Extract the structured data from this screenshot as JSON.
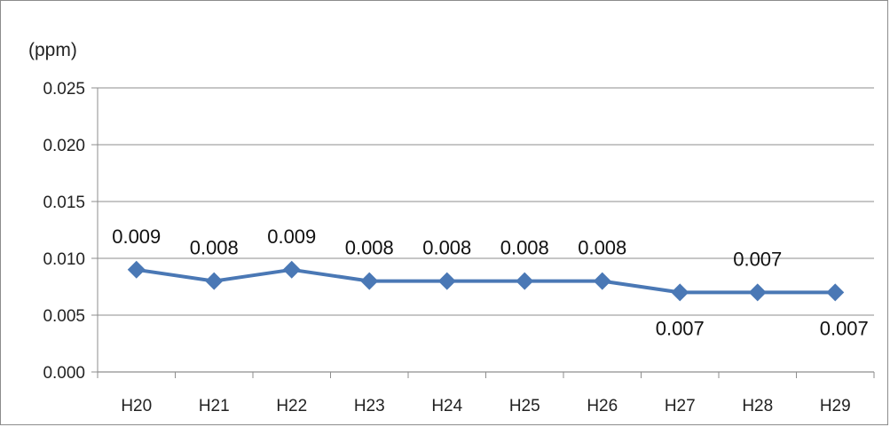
{
  "chart_data": {
    "type": "line",
    "title": "",
    "xlabel": "",
    "ylabel": "(ppm)",
    "categories": [
      "H20",
      "H21",
      "H22",
      "H23",
      "H24",
      "H25",
      "H26",
      "H27",
      "H28",
      "H29"
    ],
    "series": [
      {
        "values": [
          0.009,
          0.008,
          0.009,
          0.008,
          0.008,
          0.008,
          0.008,
          0.007,
          0.007,
          0.007
        ],
        "labels": [
          "0.009",
          "0.008",
          "0.009",
          "0.008",
          "0.008",
          "0.008",
          "0.008",
          "0.007",
          "0.007",
          "0.007"
        ],
        "color": "#4a78b5"
      }
    ],
    "ylim": [
      0,
      0.025
    ],
    "yticks": [
      0,
      0.005,
      0.01,
      0.015,
      0.02,
      0.025
    ],
    "ytick_labels": [
      "0.000",
      "0.005",
      "0.010",
      "0.015",
      "0.020",
      "0.025"
    ],
    "grid": "horizontal",
    "legend": "none"
  }
}
